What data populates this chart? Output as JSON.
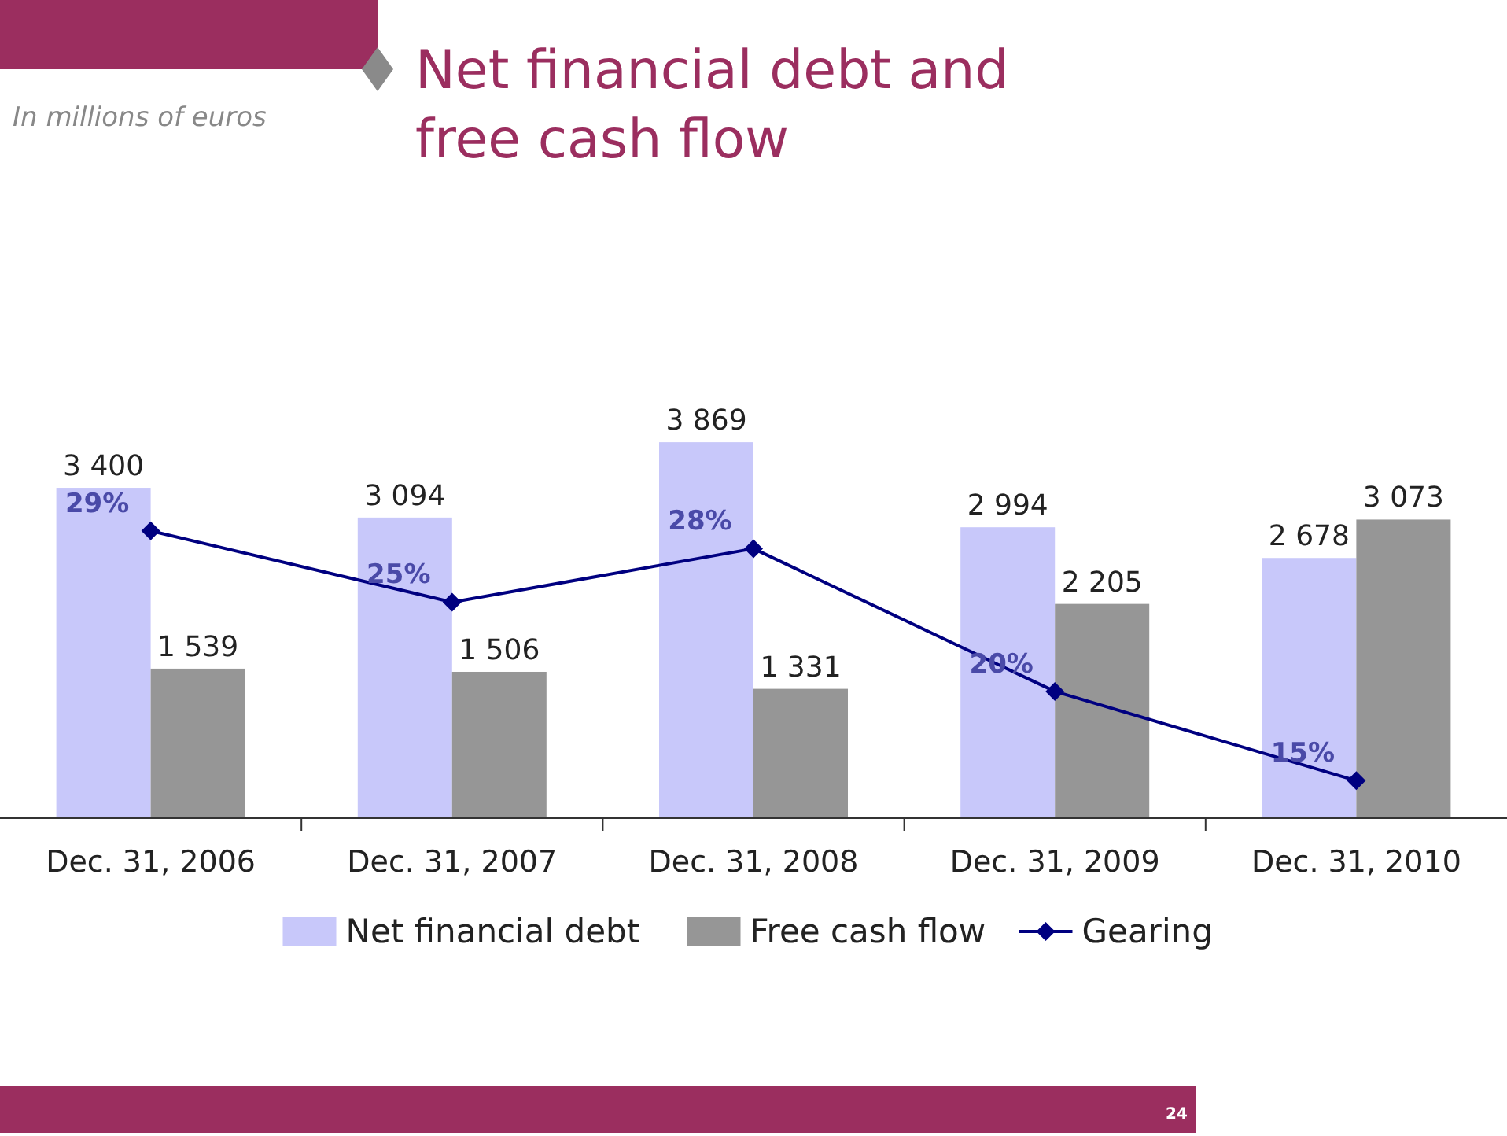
{
  "chart_data": {
    "type": "bar",
    "title": "Net financial debt and free cash flow",
    "annotations": [
      "In millions of euros",
      "24"
    ],
    "categories": [
      "Dec. 31, 2006",
      "Dec. 31, 2007",
      "Dec. 31, 2008",
      "Dec. 31, 2009",
      "Dec. 31, 2010"
    ],
    "series": [
      {
        "name": "Net financial debt",
        "color": "#c8c8fa",
        "values": [
          3400,
          3094,
          3869,
          2994,
          2678
        ],
        "value_labels": [
          "3 400",
          "3 094",
          "3 869",
          "2 994",
          "2 678"
        ]
      },
      {
        "name": "Free cash flow",
        "color": "#969696",
        "values": [
          1539,
          1506,
          1331,
          2205,
          3073
        ],
        "value_labels": [
          "1 539",
          "1 506",
          "1 331",
          "2 205",
          "3 073"
        ]
      },
      {
        "name": "Gearing",
        "type": "line",
        "axis": "y2",
        "color": "#000080",
        "marker": "diamond",
        "values": [
          29,
          25,
          28,
          20,
          15
        ],
        "value_labels": [
          "29%",
          "25%",
          "28%",
          "20%",
          "15%"
        ]
      }
    ],
    "legend": "bottom"
  }
}
